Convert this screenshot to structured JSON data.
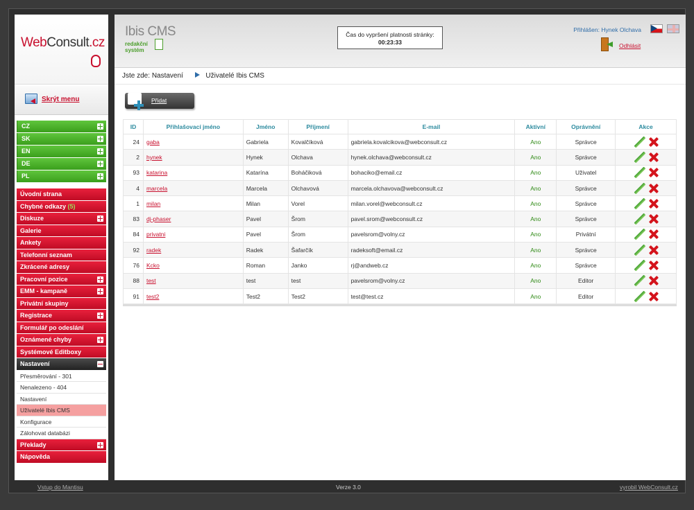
{
  "brand": {
    "logo_web": "Web",
    "logo_consult": "Consult",
    "logo_tld": ".cz"
  },
  "sidebar": {
    "hide_menu": "Skrýt menu",
    "languages": [
      "CZ",
      "SK",
      "EN",
      "DE",
      "PL"
    ],
    "menu": [
      {
        "label": "Úvodní strana",
        "expand": false
      },
      {
        "label": "Chybné odkazy",
        "badge": "(5)",
        "expand": false
      },
      {
        "label": "Diskuze",
        "expand": true
      },
      {
        "label": "Galerie",
        "expand": false
      },
      {
        "label": "Ankety",
        "expand": false
      },
      {
        "label": "Telefonní seznam",
        "expand": false
      },
      {
        "label": "Zkrácené adresy",
        "expand": false
      },
      {
        "label": "Pracovní pozice",
        "expand": true
      },
      {
        "label": "EMM - kampaně",
        "expand": true
      },
      {
        "label": "Privátní skupiny",
        "expand": false
      },
      {
        "label": "Registrace",
        "expand": true
      },
      {
        "label": "Formulář po odeslání",
        "expand": false
      },
      {
        "label": "Oznámené chyby",
        "expand": true
      },
      {
        "label": "Systémové Editboxy",
        "expand": false
      }
    ],
    "settings_label": "Nastavení",
    "settings_sub": [
      "Přesměrování - 301",
      "Nenalezeno - 404",
      "Nastavení",
      "Uživatelé Ibis CMS",
      "Konfigurace",
      "Zálohovat databázi"
    ],
    "settings_active": "Uživatelé Ibis CMS",
    "after_menu": [
      {
        "label": "Překlady",
        "expand": true
      },
      {
        "label": "Nápověda",
        "expand": false
      }
    ]
  },
  "header": {
    "app_title": "Ibis CMS",
    "app_sub_1": "redakční",
    "app_sub_2": "systém",
    "timer_label": "Čas do vypršení platnosti stránky:",
    "timer_value": "00:23:33",
    "logged_in": "Přihlášen: Hynek Olchava",
    "logout": "Odhlásit"
  },
  "breadcrumb": {
    "prefix": "Jste zde:",
    "level1": "Nastavení",
    "level2": "Uživatelé Ibis CMS"
  },
  "add_button": "Přidat",
  "table": {
    "headers": [
      "ID",
      "Přihlašovací jméno",
      "Jméno",
      "Příjmení",
      "E-mail",
      "Aktivní",
      "Oprávnění",
      "Akce"
    ],
    "rows": [
      {
        "id": "24",
        "login": "gaba",
        "first": "Gabriela",
        "last": "Kovalčíková",
        "email": "gabriela.kovalcikova@webconsult.cz",
        "active": "Ano",
        "role": "Správce"
      },
      {
        "id": "2",
        "login": "hynek",
        "first": "Hynek",
        "last": "Olchava",
        "email": "hynek.olchava@webconsult.cz",
        "active": "Ano",
        "role": "Správce"
      },
      {
        "id": "93",
        "login": "katarina",
        "first": "Katarína",
        "last": "Boháčiková",
        "email": "bohaciko@email.cz",
        "active": "Ano",
        "role": "Uživatel"
      },
      {
        "id": "4",
        "login": "marcela",
        "first": "Marcela",
        "last": "Olchavová",
        "email": "marcela.olchavova@webconsult.cz",
        "active": "Ano",
        "role": "Správce"
      },
      {
        "id": "1",
        "login": "milan",
        "first": "Milan",
        "last": "Vorel",
        "email": "milan.vorel@webconsult.cz",
        "active": "Ano",
        "role": "Správce"
      },
      {
        "id": "83",
        "login": "dj-phaser",
        "first": "Pavel",
        "last": "Šrom",
        "email": "pavel.srom@webconsult.cz",
        "active": "Ano",
        "role": "Správce"
      },
      {
        "id": "84",
        "login": "privatni",
        "first": "Pavel",
        "last": "Šrom",
        "email": "pavelsrom@volny.cz",
        "active": "Ano",
        "role": "Privátní"
      },
      {
        "id": "92",
        "login": "radek",
        "first": "Radek",
        "last": "Šafarčík",
        "email": "radeksoft@email.cz",
        "active": "Ano",
        "role": "Správce"
      },
      {
        "id": "76",
        "login": "Kcko",
        "first": "Roman",
        "last": "Janko",
        "email": "rj@andweb.cz",
        "active": "Ano",
        "role": "Správce"
      },
      {
        "id": "88",
        "login": "test",
        "first": "test",
        "last": "test",
        "email": "pavelsrom@volny.cz",
        "active": "Ano",
        "role": "Editor"
      },
      {
        "id": "91",
        "login": "test2",
        "first": "Test2",
        "last": "Test2",
        "email": "test@test.cz",
        "active": "Ano",
        "role": "Editor"
      }
    ]
  },
  "footer": {
    "left": "Vstup do Mantisu",
    "center": "Verze 3.0",
    "right": "vyrobil WebConsult.cz"
  },
  "colors": {
    "accent_red": "#c8102e",
    "accent_green": "#3b9f1c",
    "header_teal": "#2b8a9e"
  }
}
